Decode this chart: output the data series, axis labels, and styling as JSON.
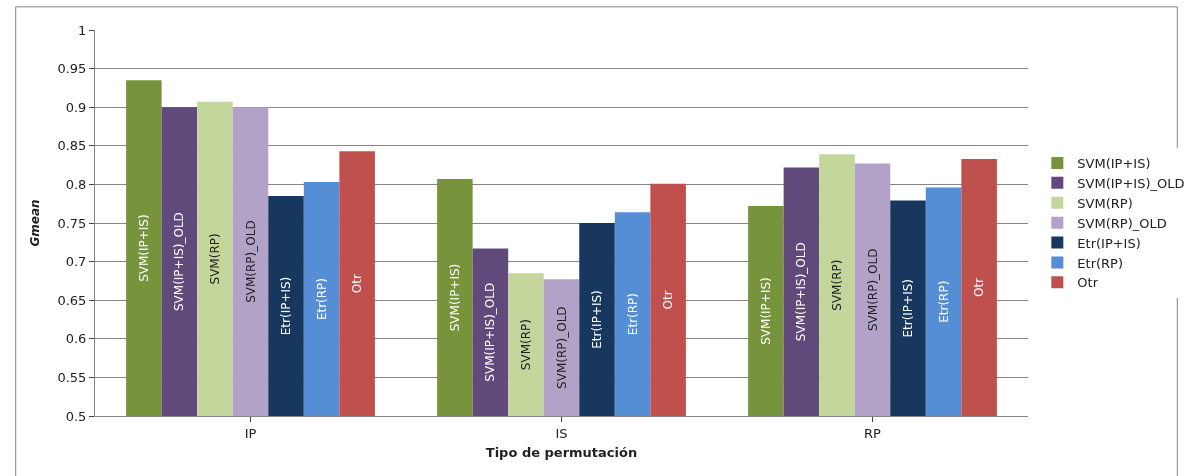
{
  "chart_data": {
    "type": "bar",
    "xlabel": "Tipo de permutación",
    "ylabel": "Gmean",
    "categories": [
      "IP",
      "IS",
      "RP"
    ],
    "series": [
      {
        "name": "SVM(IP+IS)",
        "color": "#77933c",
        "values": [
          0.935,
          0.807,
          0.772
        ]
      },
      {
        "name": "SVM(IP+IS)_OLD",
        "color": "#604a7b",
        "values": [
          0.9,
          0.717,
          0.822
        ]
      },
      {
        "name": "SVM(RP)",
        "color": "#c3d69b",
        "values": [
          0.907,
          0.685,
          0.839
        ]
      },
      {
        "name": "SVM(RP)_OLD",
        "color": "#b2a2c7",
        "values": [
          0.9,
          0.677,
          0.827
        ]
      },
      {
        "name": "Etr(IP+IS)",
        "color": "#17375e",
        "values": [
          0.785,
          0.75,
          0.779
        ]
      },
      {
        "name": "Etr(RP)",
        "color": "#558ed5",
        "values": [
          0.803,
          0.764,
          0.796
        ]
      },
      {
        "name": "Otr",
        "color": "#c0504d",
        "values": [
          0.843,
          0.801,
          0.833
        ]
      }
    ],
    "ylim": [
      0.5,
      1
    ],
    "yticks": [
      0.5,
      0.55,
      0.6,
      0.65,
      0.7,
      0.75,
      0.8,
      0.85,
      0.9,
      0.95,
      1
    ],
    "grid": "y",
    "legend": "right"
  }
}
